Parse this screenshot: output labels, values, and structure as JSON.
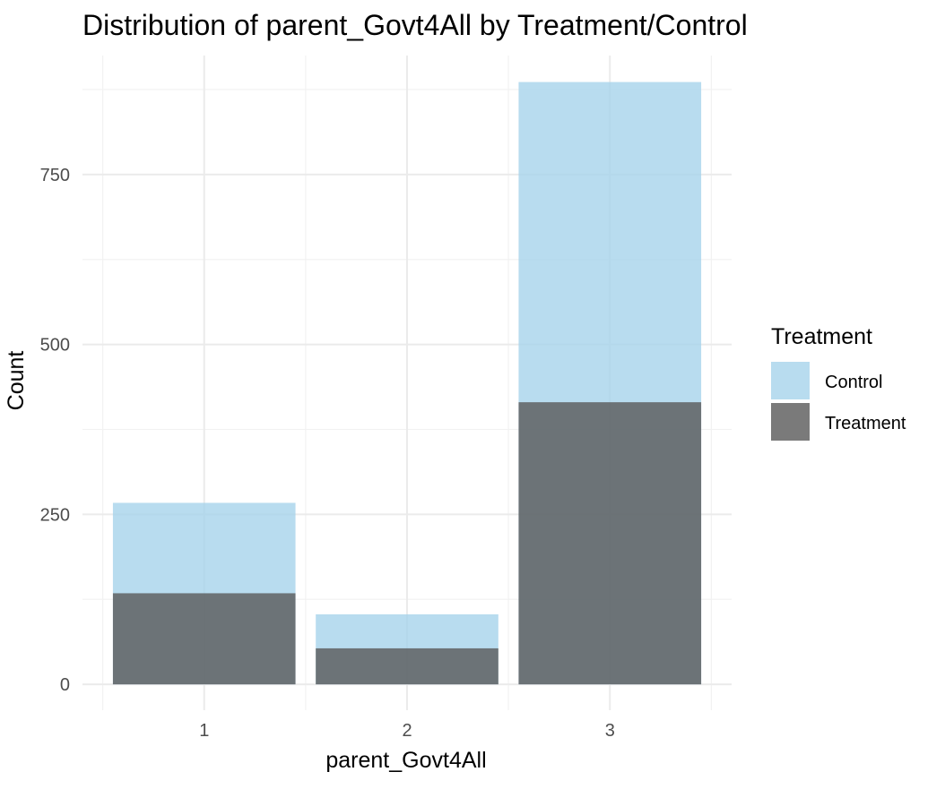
{
  "chart_data": {
    "type": "bar",
    "title": "Distribution of parent_Govt4All by Treatment/Control",
    "xlabel": "parent_Govt4All",
    "ylabel": "Count",
    "categories": [
      "1",
      "2",
      "3"
    ],
    "series": [
      {
        "name": "Control",
        "values": [
          267,
          103,
          886
        ],
        "color": "#a6d3eb"
      },
      {
        "name": "Treatment",
        "values": [
          134,
          53,
          415
        ],
        "color": "#595959"
      }
    ],
    "overlay": true,
    "ylim": [
      -38,
      925
    ],
    "yticks": [
      0,
      250,
      500,
      750
    ],
    "grid": true,
    "legend": {
      "title": "Treatment",
      "position": "right"
    }
  }
}
